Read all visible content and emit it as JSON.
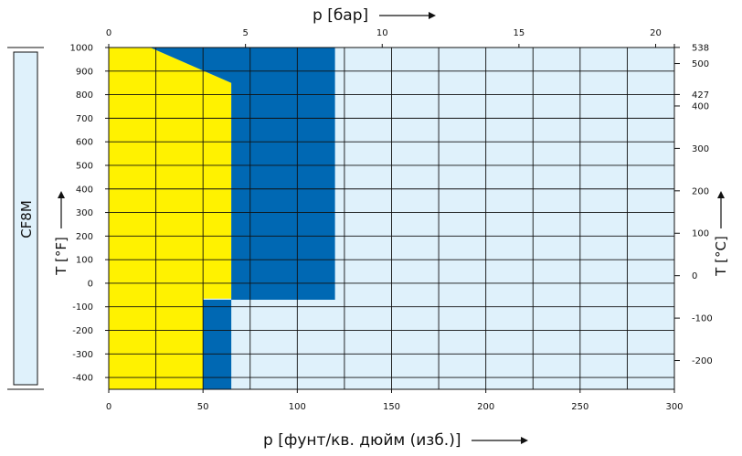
{
  "material": "CF8M",
  "colors": {
    "background": "#dff1fb",
    "yellow_region": "#fff200",
    "blue_region": "#0068b3",
    "grid": "#111111",
    "material_box": "#dff1fb"
  },
  "chart_data": {
    "type": "area",
    "x_bottom": {
      "label": "p [фунт/кв. дюйм (изб.)]",
      "range": [
        0,
        300
      ],
      "ticks": [
        0,
        50,
        100,
        150,
        200,
        250,
        300
      ]
    },
    "x_top": {
      "label": "p [бар]",
      "range": [
        0,
        20.68
      ],
      "ticks": [
        0,
        5,
        10,
        15,
        20
      ]
    },
    "y_left": {
      "label": "T [°F]",
      "range": [
        -450,
        1000
      ],
      "ticks": [
        1000,
        900,
        800,
        700,
        600,
        500,
        400,
        300,
        200,
        100,
        0,
        -100,
        -200,
        -300,
        -400
      ]
    },
    "y_right": {
      "label": "T [°C]",
      "ticks": [
        538,
        500,
        427,
        400,
        300,
        200,
        100,
        0,
        -100,
        -200
      ]
    },
    "grid": true,
    "regions": [
      {
        "color": "yellow",
        "polygon": [
          [
            0,
            1000
          ],
          [
            22,
            1000
          ],
          [
            65,
            850
          ],
          [
            65,
            -65
          ],
          [
            50,
            -65
          ],
          [
            50,
            -450
          ],
          [
            0,
            -450
          ]
        ]
      },
      {
        "color": "blue",
        "polygon": [
          [
            22,
            1000
          ],
          [
            120,
            1000
          ],
          [
            120,
            -70
          ],
          [
            65,
            -70
          ],
          [
            65,
            850
          ]
        ]
      },
      {
        "color": "blue",
        "polygon": [
          [
            50,
            -70
          ],
          [
            65,
            -70
          ],
          [
            65,
            -450
          ],
          [
            50,
            -450
          ]
        ]
      }
    ]
  }
}
